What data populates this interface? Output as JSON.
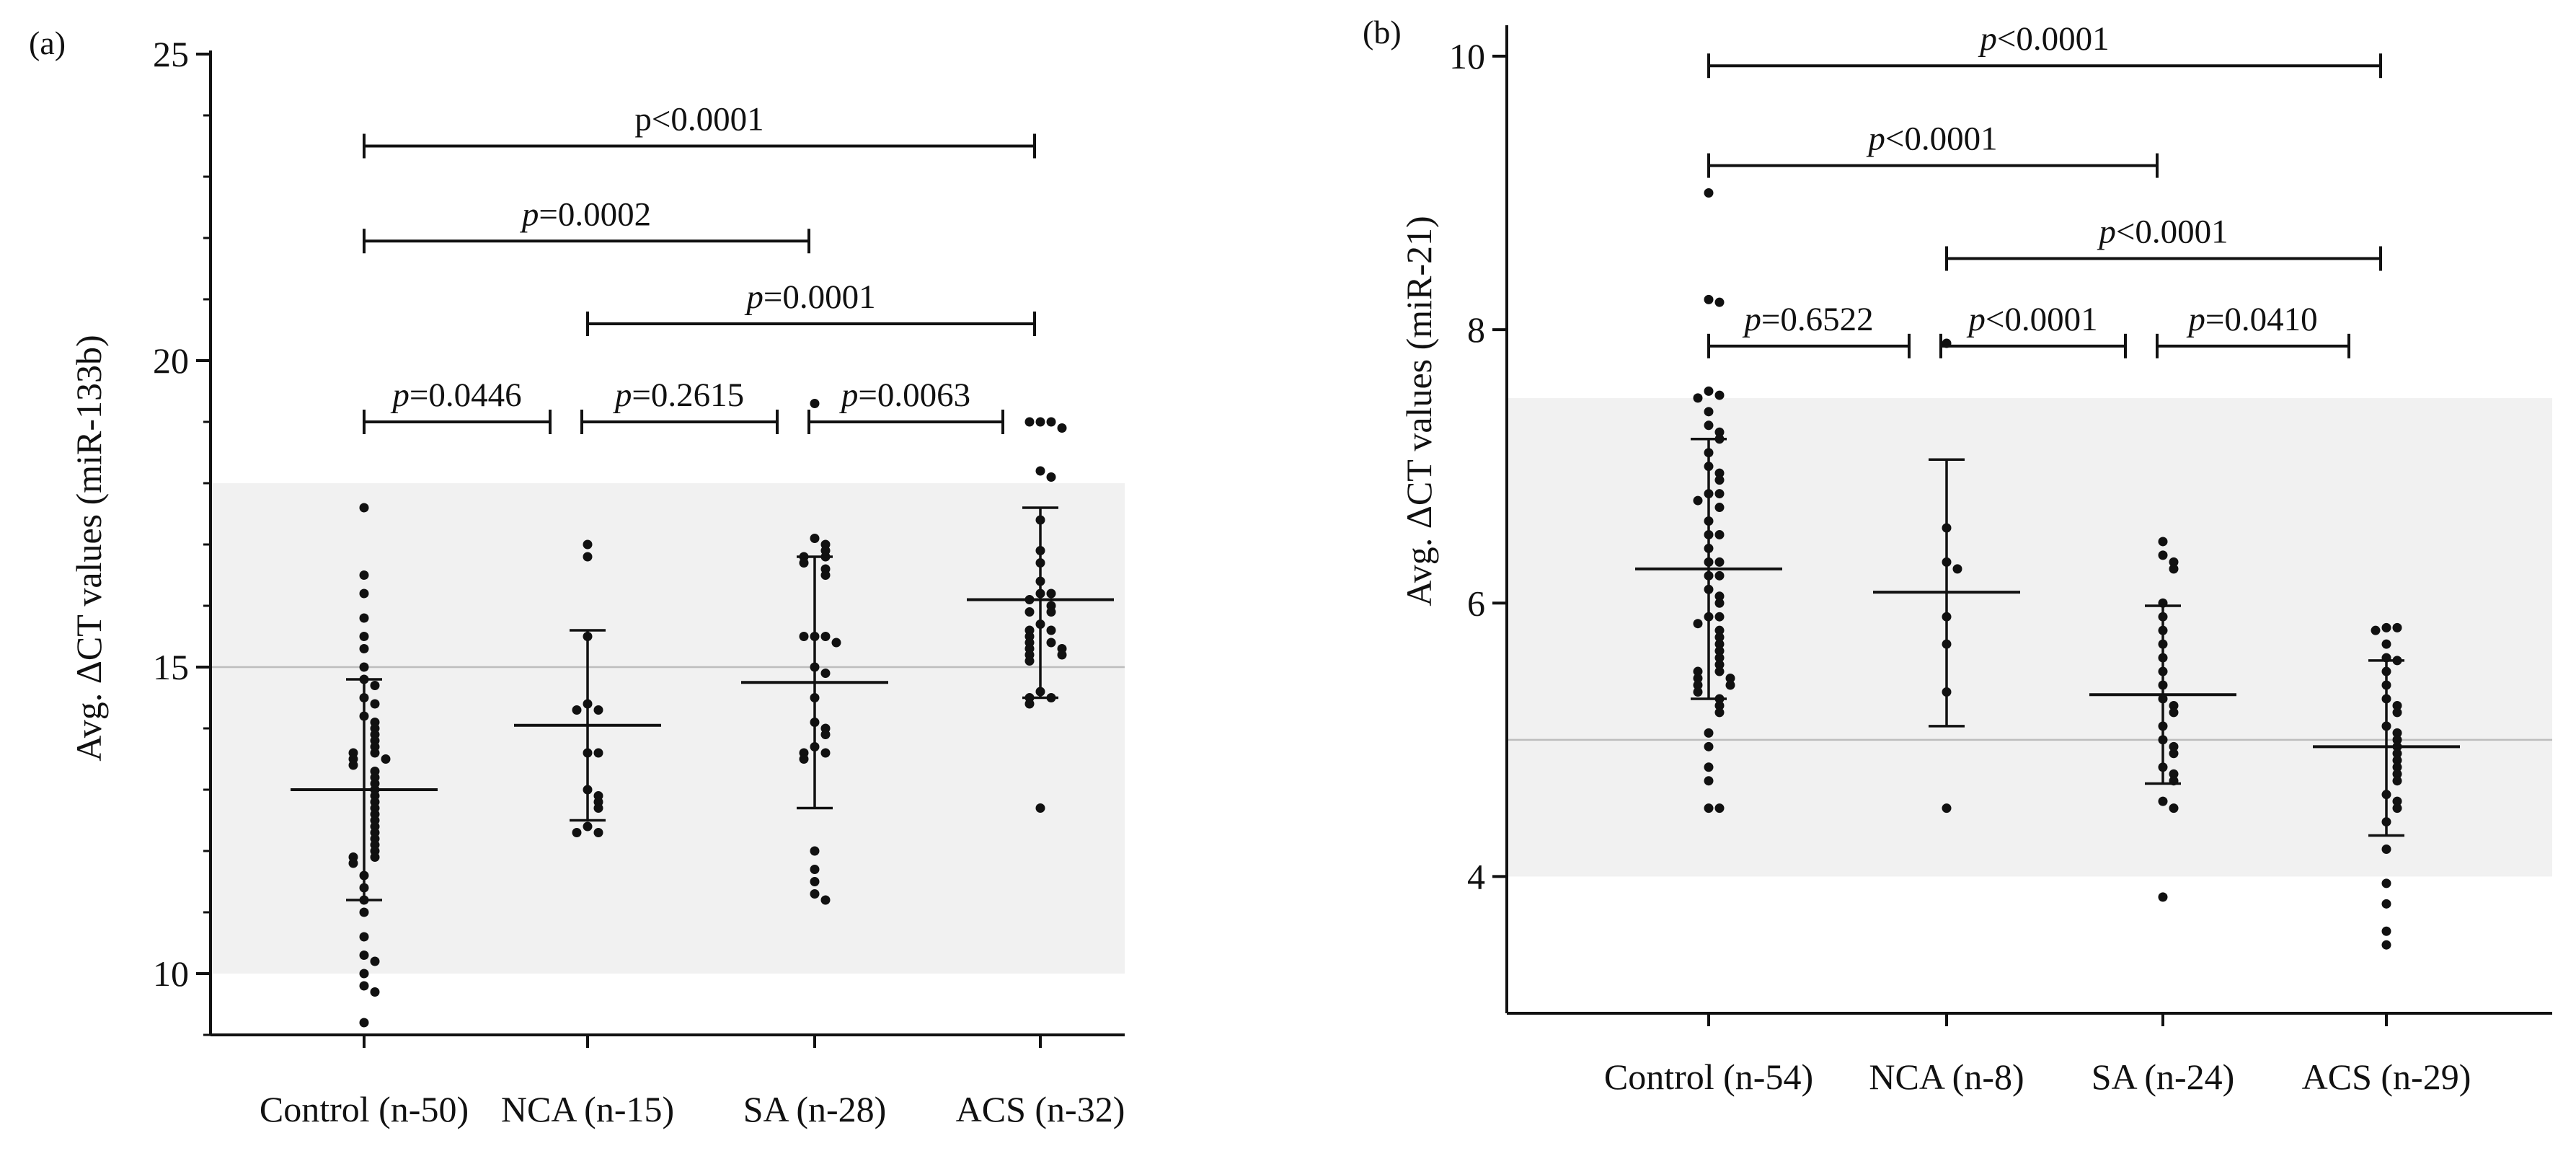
{
  "chart_data": [
    {
      "type": "scatter",
      "panel_label": "(a)",
      "title": "",
      "ylabel_prefix": "Avg.",
      "ylabel_main": "ΔCT  values (miR-133b)",
      "xlabel": "",
      "ylim": [
        9,
        25
      ],
      "yticks": [
        10,
        15,
        20,
        25
      ],
      "shaded_band": [
        10,
        18
      ],
      "reference_line": 15,
      "grid": false,
      "groups": [
        {
          "label": "Control (n-50)",
          "mean": 13.0,
          "sd_low": 11.2,
          "sd_high": 14.8,
          "values": [
            17.6,
            16.5,
            16.2,
            15.8,
            15.5,
            15.3,
            15.0,
            14.8,
            14.7,
            14.5,
            14.4,
            14.2,
            14.1,
            14.0,
            13.9,
            13.8,
            13.7,
            13.6,
            13.6,
            13.5,
            13.5,
            13.4,
            13.3,
            13.2,
            13.1,
            13.0,
            12.9,
            12.8,
            12.7,
            12.6,
            12.5,
            12.4,
            12.3,
            12.2,
            12.1,
            12.0,
            11.9,
            11.9,
            11.8,
            11.6,
            11.4,
            11.2,
            11.0,
            10.6,
            10.3,
            10.2,
            10.0,
            9.8,
            9.7,
            9.2
          ]
        },
        {
          "label": "NCA (n-15)",
          "mean": 14.05,
          "sd_low": 12.5,
          "sd_high": 15.6,
          "values": [
            17.0,
            16.8,
            15.5,
            14.4,
            14.3,
            14.3,
            13.6,
            13.6,
            13.0,
            12.9,
            12.8,
            12.7,
            12.4,
            12.3,
            12.3
          ]
        },
        {
          "label": "SA (n-28)",
          "mean": 14.75,
          "sd_low": 12.7,
          "sd_high": 16.8,
          "values": [
            19.3,
            17.1,
            17.0,
            16.9,
            16.8,
            16.8,
            16.7,
            16.6,
            16.5,
            15.5,
            15.5,
            15.5,
            15.4,
            15.0,
            14.9,
            14.5,
            14.1,
            14.0,
            13.9,
            13.7,
            13.6,
            13.6,
            13.5,
            12.0,
            11.7,
            11.5,
            11.3,
            11.2
          ]
        },
        {
          "label": "ACS (n-32)",
          "mean": 16.1,
          "sd_low": 14.5,
          "sd_high": 17.6,
          "values": [
            19.0,
            19.0,
            19.0,
            18.9,
            18.2,
            18.1,
            17.4,
            16.9,
            16.7,
            16.4,
            16.2,
            16.2,
            16.1,
            16.0,
            15.9,
            15.9,
            15.7,
            15.6,
            15.6,
            15.5,
            15.4,
            15.4,
            15.3,
            15.3,
            15.2,
            15.2,
            15.1,
            14.6,
            14.5,
            14.5,
            14.4,
            12.7
          ]
        }
      ],
      "comparisons": [
        {
          "from": 0,
          "to": 3,
          "y": 23.5,
          "p": "p<0.0001",
          "italic_p": false
        },
        {
          "from": 0,
          "to": 2,
          "y": 21.95,
          "p": "p=0.0002",
          "italic_p": true
        },
        {
          "from": 1,
          "to": 3,
          "y": 20.6,
          "p": "p=0.0001",
          "italic_p": true
        },
        {
          "from": 0,
          "to": 1,
          "y": 19.0,
          "p": "p=0.0446",
          "italic_p": true
        },
        {
          "from": 1,
          "to": 2,
          "y": 19.0,
          "p": "p=0.2615",
          "italic_p": true
        },
        {
          "from": 2,
          "to": 3,
          "y": 19.0,
          "p": "p=0.0063",
          "italic_p": true
        }
      ]
    },
    {
      "type": "scatter",
      "panel_label": "(b)",
      "title": "",
      "ylabel_prefix": "Avg.",
      "ylabel_main": "ΔCT  values (miR-21)",
      "xlabel": "",
      "ylim": [
        3,
        10.2
      ],
      "yticks": [
        4,
        6,
        8,
        10
      ],
      "shaded_band": [
        4,
        7.5
      ],
      "reference_line": 5,
      "grid": false,
      "groups": [
        {
          "label": "Control (n-54)",
          "mean": 6.25,
          "sd_low": 5.3,
          "sd_high": 7.2,
          "values": [
            9.0,
            8.22,
            8.2,
            7.55,
            7.52,
            7.5,
            7.4,
            7.3,
            7.25,
            7.2,
            7.1,
            7.0,
            6.95,
            6.9,
            6.8,
            6.8,
            6.75,
            6.7,
            6.6,
            6.5,
            6.5,
            6.4,
            6.3,
            6.3,
            6.2,
            6.2,
            6.1,
            6.05,
            6.0,
            5.9,
            5.9,
            5.85,
            5.8,
            5.75,
            5.7,
            5.65,
            5.6,
            5.55,
            5.5,
            5.5,
            5.45,
            5.45,
            5.4,
            5.4,
            5.35,
            5.3,
            5.25,
            5.2,
            5.05,
            4.95,
            4.8,
            4.7,
            4.5,
            4.5
          ]
        },
        {
          "label": "NCA (n-8)",
          "mean": 6.08,
          "sd_low": 5.1,
          "sd_high": 7.05,
          "values": [
            7.9,
            6.55,
            6.3,
            6.25,
            5.9,
            5.7,
            5.35,
            4.5
          ]
        },
        {
          "label": "SA (n-24)",
          "mean": 5.33,
          "sd_low": 4.68,
          "sd_high": 5.98,
          "values": [
            6.45,
            6.35,
            6.3,
            6.25,
            6.0,
            5.9,
            5.8,
            5.7,
            5.6,
            5.5,
            5.4,
            5.3,
            5.25,
            5.2,
            5.1,
            5.0,
            4.95,
            4.9,
            4.8,
            4.75,
            4.7,
            4.55,
            4.5,
            3.85
          ]
        },
        {
          "label": "ACS (n-29)",
          "mean": 4.95,
          "sd_low": 4.3,
          "sd_high": 5.58,
          "values": [
            5.82,
            5.82,
            5.8,
            5.7,
            5.6,
            5.58,
            5.5,
            5.4,
            5.3,
            5.25,
            5.2,
            5.1,
            5.05,
            5.0,
            4.95,
            4.9,
            4.85,
            4.8,
            4.75,
            4.7,
            4.6,
            4.55,
            4.5,
            4.4,
            4.2,
            3.95,
            3.8,
            3.6,
            3.5
          ]
        }
      ],
      "comparisons": [
        {
          "from": 0,
          "to": 3,
          "y": 9.93,
          "p": "p<0.0001",
          "italic_p": true
        },
        {
          "from": 0,
          "to": 2,
          "y": 9.2,
          "p": "p<0.0001",
          "italic_p": true
        },
        {
          "from": 1,
          "to": 3,
          "y": 8.52,
          "p": "p<0.0001",
          "italic_p": true
        },
        {
          "from": 0,
          "to": 1,
          "y": 7.88,
          "p": "p=0.6522",
          "italic_p": true
        },
        {
          "from": 1,
          "to": 2,
          "y": 7.88,
          "p": "p<0.0001",
          "italic_p": true
        },
        {
          "from": 2,
          "to": 3,
          "y": 7.88,
          "p": "p=0.0410",
          "italic_p": true
        }
      ]
    }
  ]
}
